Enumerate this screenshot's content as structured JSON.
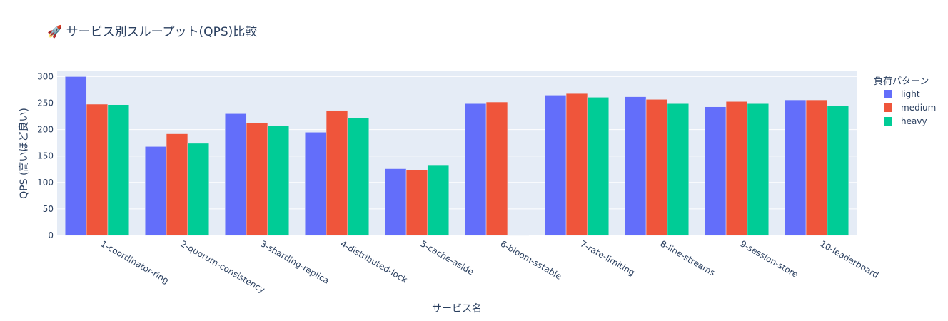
{
  "chart_data": {
    "type": "bar",
    "title": "🚀 サービス別スループット(QPS)比較",
    "xlabel": "サービス名",
    "ylabel": "QPS (高いほど良い)",
    "ylim": [
      0,
      310
    ],
    "yticks": [
      0,
      50,
      100,
      150,
      200,
      250,
      300
    ],
    "grid": true,
    "legend_title": "負荷パターン",
    "legend_position": "top-right",
    "categories": [
      "1-coordinator-ring",
      "2-quorum-consistency",
      "3-sharding-replica",
      "4-distributed-lock",
      "5-cache-aside",
      "6-bloom-sstable",
      "7-rate-limiting",
      "8-line-streams",
      "9-session-store",
      "10-leaderboard"
    ],
    "series": [
      {
        "name": "light",
        "color": "#636efa",
        "values": [
          300,
          168,
          230,
          195,
          126,
          249,
          265,
          262,
          243,
          256
        ]
      },
      {
        "name": "medium",
        "color": "#ef553b",
        "values": [
          248,
          192,
          212,
          236,
          124,
          252,
          268,
          257,
          253,
          256
        ]
      },
      {
        "name": "heavy",
        "color": "#00cc96",
        "values": [
          247,
          174,
          207,
          222,
          132,
          1,
          261,
          249,
          249,
          245
        ]
      }
    ]
  }
}
